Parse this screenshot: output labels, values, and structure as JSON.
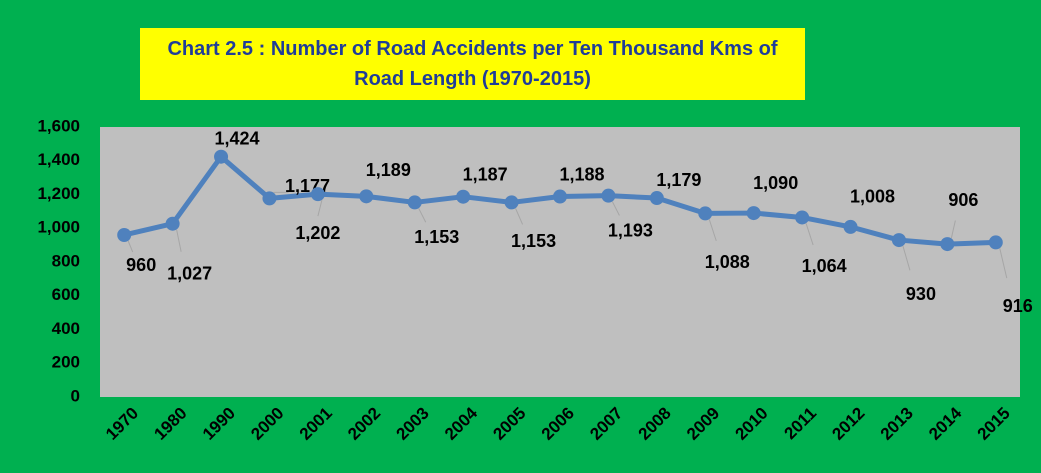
{
  "chart_data": {
    "type": "line",
    "title": "Chart 2.5 : Number of Road Accidents per Ten Thousand Kms of Road Length (1970-2015)",
    "categories": [
      "1970",
      "1980",
      "1990",
      "2000",
      "2001",
      "2002",
      "2003",
      "2004",
      "2005",
      "2006",
      "2007",
      "2008",
      "2009",
      "2010",
      "2011",
      "2012",
      "2013",
      "2014",
      "2015"
    ],
    "values": [
      960,
      1027,
      1424,
      1177,
      1202,
      1189,
      1153,
      1187,
      1153,
      1188,
      1193,
      1179,
      1088,
      1090,
      1064,
      1008,
      930,
      906,
      916
    ],
    "value_labels": [
      "960",
      "1,027",
      "1,424",
      "1,177",
      "1,202",
      "1,189",
      "1,153",
      "1,187",
      "1,153",
      "1,188",
      "1,193",
      "1,179",
      "1,088",
      "1,090",
      "1,064",
      "1,008",
      "930",
      "906",
      "916"
    ],
    "color": "#4f81bd",
    "ylim": [
      0,
      1600
    ],
    "yticks": [
      0,
      200,
      400,
      600,
      800,
      {
        "value": 1000,
        "label": "1,000"
      },
      {
        "value": 1200,
        "label": "1,200"
      },
      {
        "value": 1400,
        "label": "1,400"
      },
      {
        "value": 1600,
        "label": "1,600"
      }
    ],
    "grid": false
  }
}
